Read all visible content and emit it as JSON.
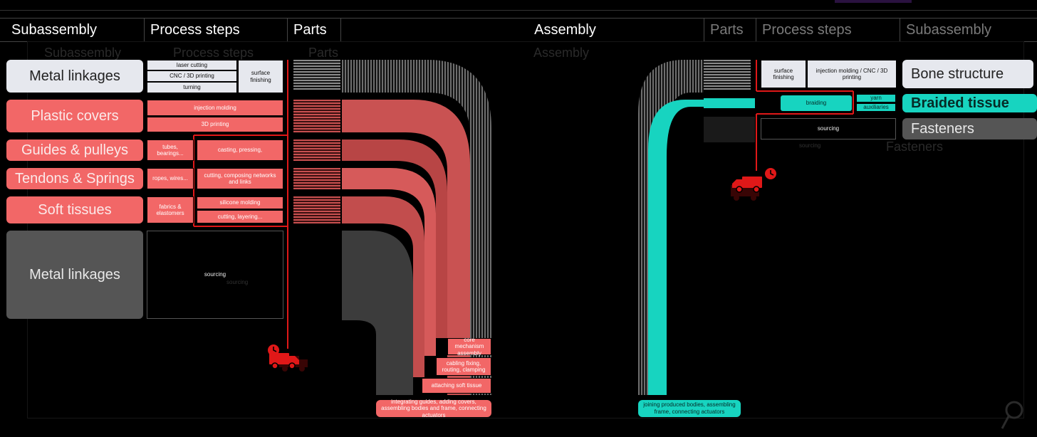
{
  "header": {
    "left": [
      "Subassembly",
      "Process steps",
      "Parts"
    ],
    "center": "Assembly",
    "right": [
      "Parts",
      "Process steps",
      "Subassembly"
    ],
    "ghost_left": [
      "Subassembly",
      "Process steps",
      "Parts"
    ],
    "ghost_center": "Assembly"
  },
  "left": {
    "subassemblies": [
      "Metal linkages",
      "Plastic covers",
      "Guides & pulleys",
      "Tendons & Springs",
      "Soft tissues",
      "Metal linkages"
    ],
    "metal_steps": [
      "laser cutting",
      "CNC / 3D printing",
      "turning"
    ],
    "surface": "surface finishing",
    "plastic_steps": [
      "injection molding",
      "3D printing"
    ],
    "guides_part": "tubes, bearings...",
    "guides_step": "casting, pressing,",
    "tendons_part": "ropes, wires...",
    "tendons_step": "cutting, composing networks and links",
    "soft_part": "fabrics & elastomers",
    "soft_steps": [
      "silicone molding",
      "cutting, layering..."
    ],
    "sourcing": "sourcing",
    "sourcing_ghost": "sourcing"
  },
  "left_assembly": {
    "steps": [
      "core mechanism assembly",
      "cabling fixing, routing, clamping",
      "attaching soft tissue"
    ],
    "final": "integrating guides, adding covers, assembling bodies and frame, connecting actuators"
  },
  "right": {
    "subassemblies": [
      "Bone structure",
      "Braided tissue",
      "Fasteners"
    ],
    "ghost_fasteners": "Fasteners",
    "surface": "surface finishing",
    "bone_step": "injection molding / CNC / 3D printing",
    "braiding": "braiding",
    "yarn": "yarn",
    "auxiliaries": "auxiliaries",
    "sourcing": "sourcing",
    "sourcing_ghost": "sourcing",
    "final": "joining produced bodies, assembling frame, connecting actuators"
  },
  "colors": {
    "red": "#f26767",
    "teal": "#17d4c0",
    "white": "#e6e8ee",
    "grey": "#555555",
    "marker": "#e01818"
  },
  "icons": [
    "delivery-truck-clock-icon",
    "delivery-truck-clock-icon",
    "search-icon"
  ]
}
